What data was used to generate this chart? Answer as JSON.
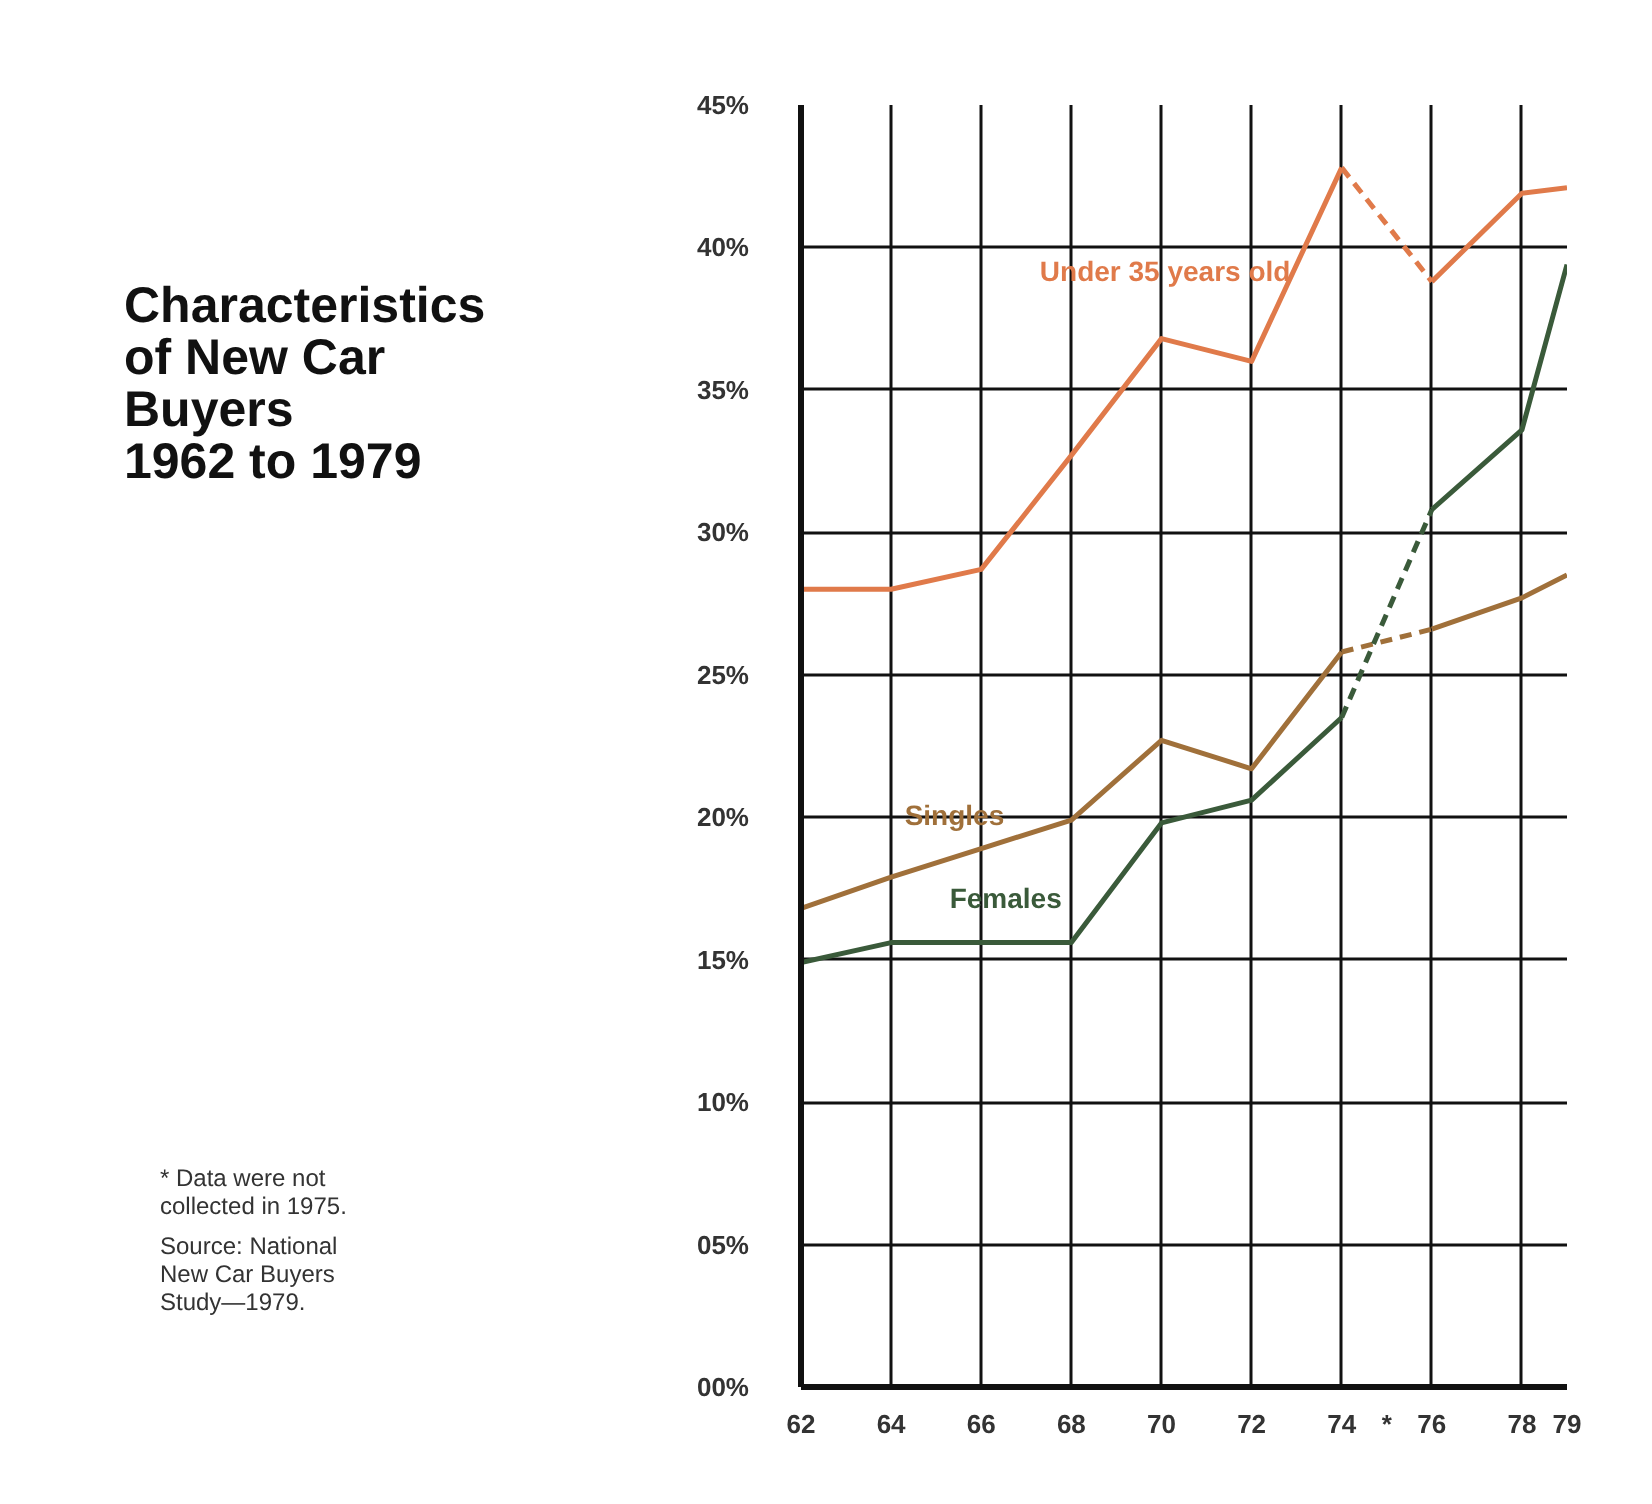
{
  "chart_data": {
    "type": "line",
    "title": "Characteristics\nof New Car\nBuyers\n1962 to 1979",
    "series": [
      {
        "name": "Under 35 years old",
        "color": "#e07a4a",
        "x": [
          62,
          64,
          66,
          68,
          70,
          72,
          74
        ],
        "values": [
          28,
          28,
          28.7,
          32.7,
          36.8,
          36,
          42.8
        ]
      },
      {
        "color": "#e07a4a",
        "x": [
          74,
          76
        ],
        "values": [
          42.8,
          38.8
        ],
        "line_style": "dashed"
      },
      {
        "color": "#e07a4a",
        "x": [
          76,
          78,
          79
        ],
        "values": [
          38.8,
          41.9,
          42.1
        ]
      },
      {
        "name": "Singles",
        "color": "#a0703a",
        "x": [
          62,
          64,
          66,
          68,
          70,
          72,
          74
        ],
        "values": [
          16.8,
          17.9,
          18.9,
          19.9,
          22.7,
          21.7,
          25.8
        ]
      },
      {
        "color": "#a0703a",
        "x": [
          74,
          76
        ],
        "values": [
          25.8,
          26.6
        ],
        "line_style": "dashed"
      },
      {
        "color": "#a0703a",
        "x": [
          76,
          78,
          79
        ],
        "values": [
          26.6,
          27.7,
          28.5
        ]
      },
      {
        "name": "Females",
        "color": "#3a5a3a",
        "x": [
          62,
          64,
          66,
          68,
          70,
          72,
          74
        ],
        "values": [
          14.9,
          15.6,
          15.6,
          15.6,
          19.8,
          20.6,
          23.5
        ]
      },
      {
        "color": "#3a5a3a",
        "x": [
          74,
          76
        ],
        "values": [
          23.5,
          30.8
        ],
        "line_style": "dashed"
      },
      {
        "color": "#3a5a3a",
        "x": [
          76,
          78,
          79
        ],
        "values": [
          30.8,
          33.6,
          39.4
        ]
      }
    ],
    "xlim": [
      62,
      79
    ],
    "ylim": [
      0,
      45
    ],
    "xticks": [
      62,
      64,
      66,
      68,
      70,
      72,
      74,
      {
        "value": 75,
        "label": "*"
      },
      76,
      78,
      79
    ],
    "yticks": [
      {
        "value": 0,
        "label": "00%"
      },
      {
        "value": 5,
        "label": "05%"
      },
      {
        "value": 10,
        "label": "10%"
      },
      {
        "value": 15,
        "label": "15%"
      },
      {
        "value": 20,
        "label": "20%"
      },
      {
        "value": 25,
        "label": "25%"
      },
      {
        "value": 30,
        "label": "30%"
      },
      {
        "value": 35,
        "label": "35%"
      },
      {
        "value": 40,
        "label": "40%"
      },
      {
        "value": 45,
        "label": "45%"
      }
    ],
    "grid": true,
    "marker": "none",
    "line_style": "solid",
    "annotations": [
      "* Data were not\ncollected in 1975.",
      "Source: National\nNew Car Buyers\nStudy—1979."
    ]
  }
}
